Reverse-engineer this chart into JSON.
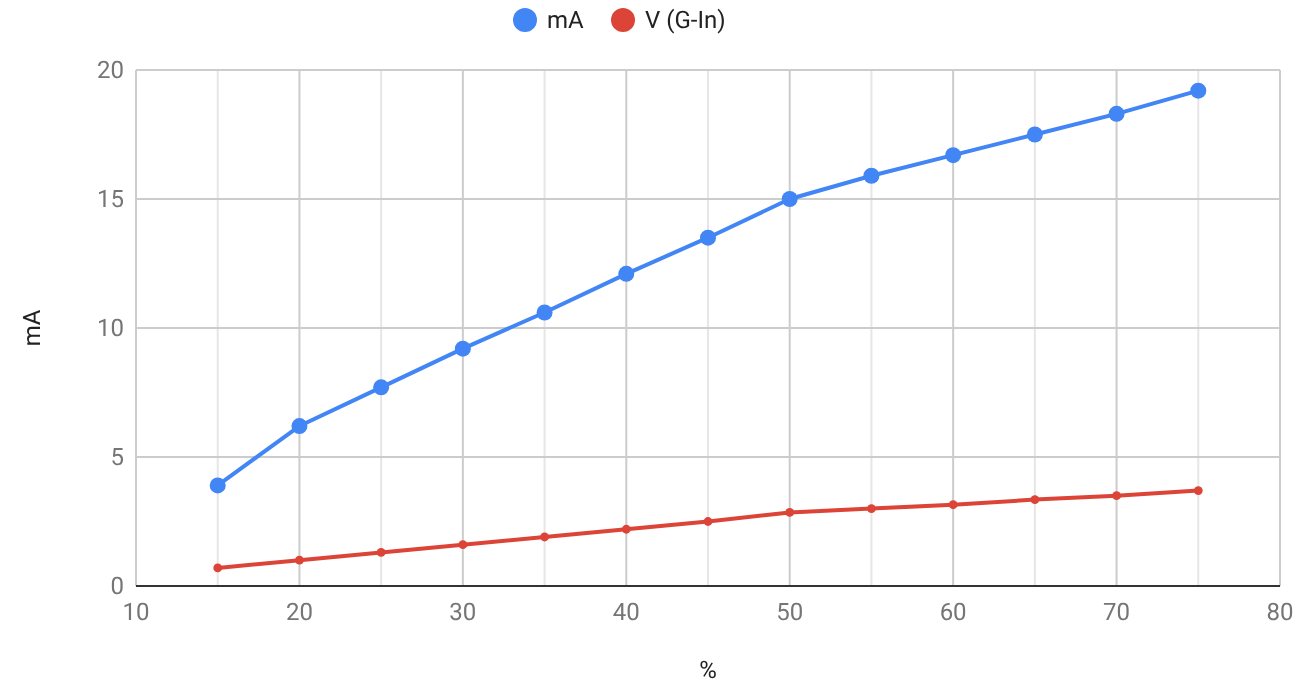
{
  "chart_data": {
    "type": "line",
    "xlabel": "%",
    "ylabel": "mA",
    "x": [
      15,
      20,
      25,
      30,
      35,
      40,
      45,
      50,
      55,
      60,
      65,
      70,
      75
    ],
    "series": [
      {
        "name": "mA",
        "color": "#4285f4",
        "values": [
          3.9,
          6.2,
          7.7,
          9.2,
          10.6,
          12.1,
          13.5,
          15.0,
          15.9,
          16.7,
          17.5,
          18.3,
          19.2
        ]
      },
      {
        "name": "V (G-In)",
        "color": "#db4437",
        "values": [
          0.7,
          1.0,
          1.3,
          1.6,
          1.9,
          2.2,
          2.5,
          2.85,
          3.0,
          3.15,
          3.35,
          3.5,
          3.7
        ]
      }
    ],
    "xlim": [
      10,
      80
    ],
    "xticks": [
      10,
      {
        "value": 15,
        "label": null
      },
      20,
      {
        "value": 25,
        "label": null
      },
      30,
      {
        "value": 35,
        "label": null
      },
      40,
      {
        "value": 45,
        "label": null
      },
      50,
      {
        "value": 55,
        "label": null
      },
      60,
      {
        "value": 65,
        "label": null
      },
      70,
      {
        "value": 75,
        "label": null
      },
      80
    ],
    "ylim": [
      0,
      20
    ],
    "yticks": [
      0,
      5,
      10,
      15,
      20
    ],
    "grid": true,
    "legend": "top",
    "marker": "circle",
    "line_style": "solid"
  }
}
